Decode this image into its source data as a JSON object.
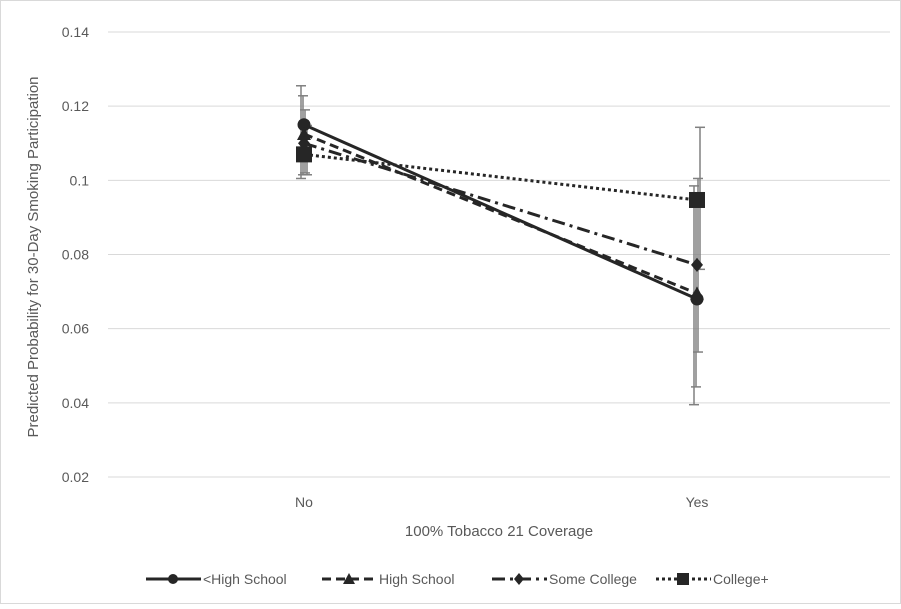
{
  "chart_data": {
    "type": "line",
    "title": "",
    "xlabel": "100% Tobacco 21 Coverage",
    "ylabel": "Predicted Probability for 30-Day Smoking Participation",
    "categories": [
      "No",
      "Yes"
    ],
    "ylim": [
      0.02,
      0.14
    ],
    "yticks": [
      "0.02",
      "0.04",
      "0.06",
      "0.08",
      "0.1",
      "0.12",
      "0.14"
    ],
    "grid": true,
    "legend_position": "bottom",
    "series": [
      {
        "name": "<High School",
        "marker": "circle",
        "dash": "solid",
        "values": [
          0.115,
          0.068
        ],
        "err_low": [
          0.1005,
          0.0395
        ],
        "err_high": [
          0.1255,
          0.0985
        ]
      },
      {
        "name": "High School",
        "marker": "triangle",
        "dash": "dash",
        "values": [
          0.1125,
          0.0695
        ],
        "err_low": [
          0.1015,
          0.0443
        ],
        "err_high": [
          0.1228,
          0.0962
        ]
      },
      {
        "name": "Some College",
        "marker": "diamond",
        "dash": "dashdot",
        "values": [
          0.11,
          0.0772
        ],
        "err_low": [
          0.102,
          0.0537
        ],
        "err_high": [
          0.119,
          0.1005
        ]
      },
      {
        "name": "College+",
        "marker": "square",
        "dash": "dot",
        "values": [
          0.107,
          0.0947
        ],
        "err_low": [
          0.1015,
          0.076
        ],
        "err_high": [
          0.1148,
          0.1143
        ]
      }
    ]
  }
}
